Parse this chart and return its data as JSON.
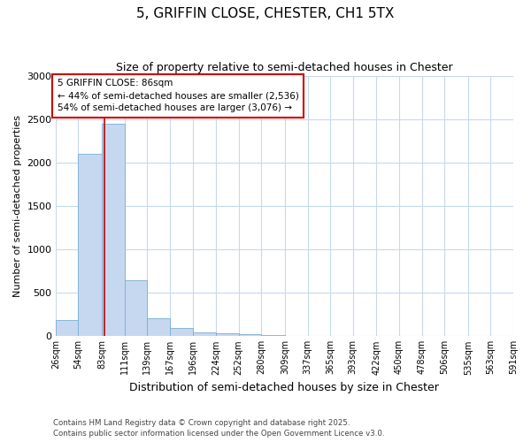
{
  "title": "5, GRIFFIN CLOSE, CHESTER, CH1 5TX",
  "subtitle": "Size of property relative to semi-detached houses in Chester",
  "xlabel": "Distribution of semi-detached houses by size in Chester",
  "ylabel": "Number of semi-detached properties",
  "property_size": 86,
  "pct_smaller": 44,
  "pct_larger": 54,
  "count_smaller": 2536,
  "count_larger": 3076,
  "bin_edges": [
    26,
    54,
    83,
    111,
    139,
    167,
    196,
    224,
    252,
    280,
    309,
    337,
    365,
    393,
    422,
    450,
    478,
    506,
    535,
    563,
    591
  ],
  "bar_heights": [
    180,
    2100,
    2450,
    645,
    200,
    90,
    45,
    30,
    18,
    12,
    4,
    2,
    1,
    0,
    0,
    0,
    0,
    0,
    0,
    0
  ],
  "bar_color": "#c5d8f0",
  "bar_edge_color": "#7aadd4",
  "red_line_color": "#cc0000",
  "annotation_box_color": "#cc0000",
  "background_color": "#ffffff",
  "grid_color": "#c8d8f0",
  "ylim": [
    0,
    3000
  ],
  "tick_labels": [
    "26sqm",
    "54sqm",
    "83sqm",
    "111sqm",
    "139sqm",
    "167sqm",
    "196sqm",
    "224sqm",
    "252sqm",
    "280sqm",
    "309sqm",
    "337sqm",
    "365sqm",
    "393sqm",
    "422sqm",
    "450sqm",
    "478sqm",
    "506sqm",
    "535sqm",
    "563sqm",
    "591sqm"
  ],
  "footnote1": "Contains HM Land Registry data © Crown copyright and database right 2025.",
  "footnote2": "Contains public sector information licensed under the Open Government Licence v3.0."
}
